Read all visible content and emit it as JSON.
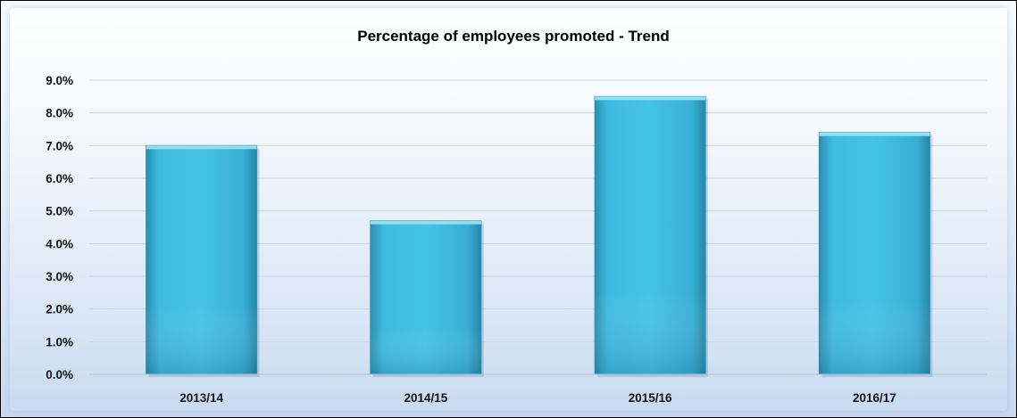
{
  "chart_data": {
    "type": "bar",
    "title": "Percentage of employees promoted - Trend",
    "categories": [
      "2013/14",
      "2014/15",
      "2015/16",
      "2016/17"
    ],
    "values": [
      7.0,
      4.7,
      8.5,
      7.4
    ],
    "unit": "%",
    "ylim": [
      0,
      9
    ],
    "yticks": [
      "0.0%",
      "1.0%",
      "2.0%",
      "3.0%",
      "4.0%",
      "5.0%",
      "6.0%",
      "7.0%",
      "8.0%",
      "9.0%"
    ],
    "grid": true,
    "legend": "none",
    "colors": {
      "bar_light": "#4cc9e6",
      "bar_mid": "#38b4d6",
      "bar_dark": "#2a95b8",
      "bar_top": "#8ee0f2",
      "grid": "#c9d6e6"
    }
  }
}
